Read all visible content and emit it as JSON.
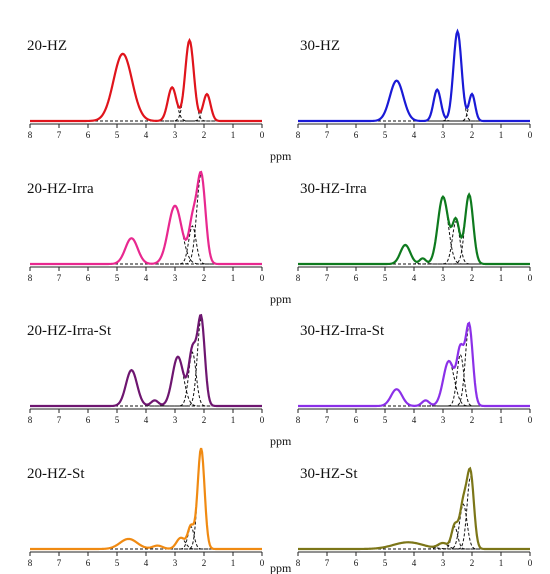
{
  "chart_data": [
    {
      "type": "line",
      "title": "20-HZ",
      "xlabel": "ppm",
      "xlim": [
        8,
        0
      ],
      "x_reversed": true,
      "xticks": [
        "8",
        "7",
        "6",
        "5",
        "4",
        "3",
        "2",
        "1",
        "0"
      ],
      "envelope_color": "#e0141c",
      "ymax": 1.0,
      "components": [
        {
          "center": 4.8,
          "height": 0.6,
          "width": 0.75
        },
        {
          "center": 3.1,
          "height": 0.3,
          "width": 0.35
        },
        {
          "center": 2.5,
          "height": 0.72,
          "width": 0.35
        },
        {
          "center": 1.9,
          "height": 0.24,
          "width": 0.3
        }
      ]
    },
    {
      "type": "line",
      "title": "30-HZ",
      "xlabel": "ppm",
      "xlim": [
        8,
        0
      ],
      "x_reversed": true,
      "xticks": [
        "8",
        "7",
        "6",
        "5",
        "4",
        "3",
        "2",
        "1",
        "0"
      ],
      "envelope_color": "#1a1ad6",
      "ymax": 1.0,
      "components": [
        {
          "center": 4.6,
          "height": 0.36,
          "width": 0.55
        },
        {
          "center": 3.2,
          "height": 0.28,
          "width": 0.3
        },
        {
          "center": 2.5,
          "height": 0.8,
          "width": 0.33
        },
        {
          "center": 2.0,
          "height": 0.24,
          "width": 0.25
        }
      ]
    },
    {
      "type": "line",
      "title": "20-HZ-Irra",
      "xlabel": "ppm",
      "xlim": [
        8,
        0
      ],
      "x_reversed": true,
      "xticks": [
        "8",
        "7",
        "6",
        "5",
        "4",
        "3",
        "2",
        "1",
        "0"
      ],
      "envelope_color": "#e8288f",
      "ymax": 1.0,
      "components": [
        {
          "center": 4.5,
          "height": 0.23,
          "width": 0.5
        },
        {
          "center": 3.0,
          "height": 0.52,
          "width": 0.55
        },
        {
          "center": 2.4,
          "height": 0.34,
          "width": 0.3
        },
        {
          "center": 2.1,
          "height": 0.8,
          "width": 0.35
        }
      ]
    },
    {
      "type": "line",
      "title": "30-HZ-Irra",
      "xlabel": "ppm",
      "xlim": [
        8,
        0
      ],
      "x_reversed": true,
      "xticks": [
        "8",
        "7",
        "6",
        "5",
        "4",
        "3",
        "2",
        "1",
        "0"
      ],
      "envelope_color": "#0e7a1e",
      "ymax": 1.0,
      "components": [
        {
          "center": 4.3,
          "height": 0.17,
          "width": 0.4
        },
        {
          "center": 3.0,
          "height": 0.6,
          "width": 0.42
        },
        {
          "center": 2.55,
          "height": 0.38,
          "width": 0.3
        },
        {
          "center": 2.1,
          "height": 0.62,
          "width": 0.33
        },
        {
          "center": 3.7,
          "height": 0.05,
          "width": 0.25
        }
      ]
    },
    {
      "type": "line",
      "title": "20-HZ-Irra-St",
      "xlabel": "ppm",
      "xlim": [
        8,
        0
      ],
      "x_reversed": true,
      "xticks": [
        "8",
        "7",
        "6",
        "5",
        "4",
        "3",
        "2",
        "1",
        "0"
      ],
      "envelope_color": "#6e1670",
      "ymax": 1.0,
      "components": [
        {
          "center": 4.5,
          "height": 0.32,
          "width": 0.45
        },
        {
          "center": 3.7,
          "height": 0.05,
          "width": 0.3
        },
        {
          "center": 2.9,
          "height": 0.44,
          "width": 0.45
        },
        {
          "center": 2.4,
          "height": 0.48,
          "width": 0.3
        },
        {
          "center": 2.1,
          "height": 0.78,
          "width": 0.3
        }
      ]
    },
    {
      "type": "line",
      "title": "30-HZ-Irra-St",
      "xlabel": "ppm",
      "xlim": [
        8,
        0
      ],
      "x_reversed": true,
      "xticks": [
        "8",
        "7",
        "6",
        "5",
        "4",
        "3",
        "2",
        "1",
        "0"
      ],
      "envelope_color": "#8b30e8",
      "ymax": 1.0,
      "components": [
        {
          "center": 4.6,
          "height": 0.15,
          "width": 0.45
        },
        {
          "center": 3.6,
          "height": 0.05,
          "width": 0.3
        },
        {
          "center": 2.8,
          "height": 0.4,
          "width": 0.45
        },
        {
          "center": 2.4,
          "height": 0.46,
          "width": 0.28
        },
        {
          "center": 2.1,
          "height": 0.72,
          "width": 0.3
        }
      ]
    },
    {
      "type": "line",
      "title": "20-HZ-St",
      "xlabel": "ppm",
      "xlim": [
        8,
        0
      ],
      "x_reversed": true,
      "xticks": [
        "8",
        "7",
        "6",
        "5",
        "4",
        "3",
        "2",
        "1",
        "0"
      ],
      "envelope_color": "#f08a12",
      "ymax": 1.0,
      "components": [
        {
          "center": 4.6,
          "height": 0.09,
          "width": 0.7
        },
        {
          "center": 3.6,
          "height": 0.03,
          "width": 0.4
        },
        {
          "center": 2.8,
          "height": 0.1,
          "width": 0.35
        },
        {
          "center": 2.45,
          "height": 0.2,
          "width": 0.25
        },
        {
          "center": 2.1,
          "height": 0.9,
          "width": 0.28
        }
      ]
    },
    {
      "type": "line",
      "title": "30-HZ-St",
      "xlabel": "ppm",
      "xlim": [
        8,
        0
      ],
      "x_reversed": true,
      "xticks": [
        "8",
        "7",
        "6",
        "5",
        "4",
        "3",
        "2",
        "1",
        "0"
      ],
      "envelope_color": "#7c7618",
      "ymax": 1.0,
      "components": [
        {
          "center": 4.2,
          "height": 0.06,
          "width": 1.2
        },
        {
          "center": 3.0,
          "height": 0.05,
          "width": 0.4
        },
        {
          "center": 2.6,
          "height": 0.2,
          "width": 0.25
        },
        {
          "center": 2.3,
          "height": 0.4,
          "width": 0.3
        },
        {
          "center": 2.05,
          "height": 0.65,
          "width": 0.28
        }
      ]
    }
  ]
}
